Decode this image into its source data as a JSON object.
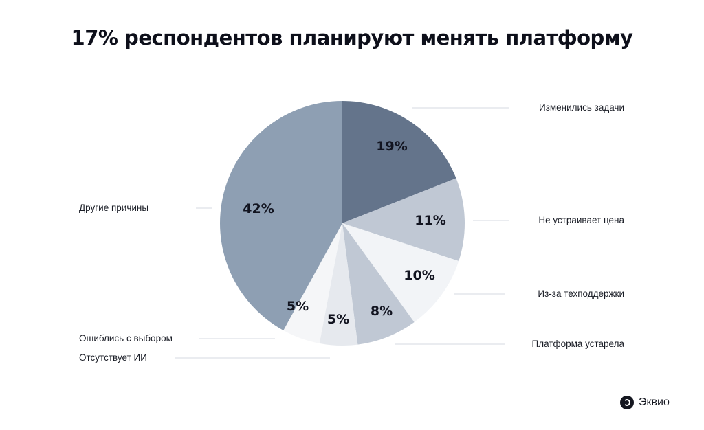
{
  "chart_data": {
    "type": "pie",
    "title": "17% респондентов планируют менять платформу",
    "start": "top",
    "direction": "clockwise",
    "slices": [
      {
        "label": "Изменились задачи",
        "value": 19,
        "display": "19%",
        "color": "#64748b"
      },
      {
        "label": "Не устраивает цена",
        "value": 11,
        "display": "11%",
        "color": "#c0c8d4"
      },
      {
        "label": "Из-за техподдержки",
        "value": 10,
        "display": "10%",
        "color": "#f2f4f7"
      },
      {
        "label": "Платформа устарела",
        "value": 8,
        "display": "8%",
        "color": "#c0c8d4"
      },
      {
        "label": "Отсутствует ИИ",
        "value": 5,
        "display": "5%",
        "color": "#e6e9ee"
      },
      {
        "label": "Ошиблись с выбором",
        "value": 5,
        "display": "5%",
        "color": "#f5f6f8"
      },
      {
        "label": "Другие причины",
        "value": 42,
        "display": "42%",
        "color": "#8e9fb3"
      }
    ]
  },
  "logo": {
    "text": "Эквио"
  }
}
